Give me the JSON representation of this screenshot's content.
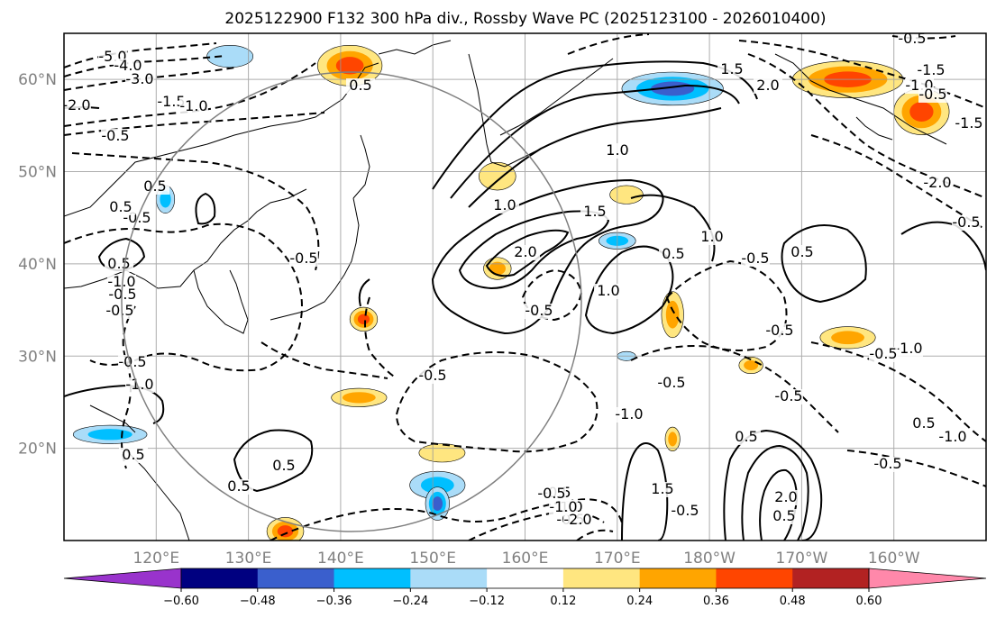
{
  "chart_data": {
    "type": "heatmap",
    "title": "2025122900 F132 300 hPa div., Rossby Wave PC (2025123100 - 2026010400)",
    "projection": "map",
    "lon_range": [
      110,
      210
    ],
    "lat_range": [
      10,
      65
    ],
    "grid": true,
    "xticks": [
      {
        "lon": 120,
        "label": "120°E"
      },
      {
        "lon": 130,
        "label": "130°E"
      },
      {
        "lon": 140,
        "label": "140°E"
      },
      {
        "lon": 150,
        "label": "150°E"
      },
      {
        "lon": 160,
        "label": "160°E"
      },
      {
        "lon": 170,
        "label": "170°E"
      },
      {
        "lon": 180,
        "label": "180°W"
      },
      {
        "lon": 190,
        "label": "170°W"
      },
      {
        "lon": 200,
        "label": "160°W"
      }
    ],
    "yticks": [
      {
        "lat": 20,
        "label": "20°N"
      },
      {
        "lat": 30,
        "label": "30°N"
      },
      {
        "lat": 40,
        "label": "40°N"
      },
      {
        "lat": 50,
        "label": "50°N"
      },
      {
        "lat": 60,
        "label": "60°N"
      }
    ],
    "colorbar": {
      "levels": [
        -0.6,
        -0.48,
        -0.36,
        -0.24,
        -0.12,
        0.12,
        0.24,
        0.36,
        0.48,
        0.6
      ],
      "tick_labels": [
        "−0.60",
        "−0.48",
        "−0.36",
        "−0.24",
        "−0.12",
        "0.12",
        "0.24",
        "0.36",
        "0.48",
        "0.60"
      ],
      "colors": [
        "#9933cc",
        "#000080",
        "#3a5fcd",
        "#00bfff",
        "#aadcf8",
        "#ffffff",
        "#ffe680",
        "#ffa500",
        "#ff4500",
        "#b22222",
        "#ff88aa"
      ]
    },
    "shaded_regions": [
      {
        "lon": 141,
        "lat": 61.5,
        "r_lon": 3.5,
        "r_lat": 2.2,
        "value": 0.4
      },
      {
        "lon": 176,
        "lat": 59,
        "r_lon": 5.5,
        "r_lat": 1.8,
        "value": -0.45
      },
      {
        "lon": 195,
        "lat": 60,
        "r_lon": 6,
        "r_lat": 2,
        "value": 0.42
      },
      {
        "lon": 203,
        "lat": 56.5,
        "r_lon": 3,
        "r_lat": 2.5,
        "value": 0.45
      },
      {
        "lon": 157,
        "lat": 49.5,
        "r_lon": 2,
        "r_lat": 1.5,
        "value": 0.2
      },
      {
        "lon": 157,
        "lat": 39.5,
        "r_lon": 1.5,
        "r_lat": 1.2,
        "value": 0.28
      },
      {
        "lon": 171,
        "lat": 47.5,
        "r_lon": 1.8,
        "r_lat": 1,
        "value": 0.22
      },
      {
        "lon": 170,
        "lat": 42.5,
        "r_lon": 2,
        "r_lat": 0.9,
        "value": -0.25
      },
      {
        "lon": 176,
        "lat": 34.5,
        "r_lon": 1.2,
        "r_lat": 2.5,
        "value": 0.34
      },
      {
        "lon": 142.5,
        "lat": 34,
        "r_lon": 1.5,
        "r_lat": 1.3,
        "value": 0.38
      },
      {
        "lon": 142,
        "lat": 25.5,
        "r_lon": 3,
        "r_lat": 1,
        "value": 0.26
      },
      {
        "lon": 195,
        "lat": 32,
        "r_lon": 3,
        "r_lat": 1.2,
        "value": 0.27
      },
      {
        "lon": 184.5,
        "lat": 29,
        "r_lon": 1.3,
        "r_lat": 0.9,
        "value": 0.26
      },
      {
        "lon": 150.5,
        "lat": 16,
        "r_lon": 3,
        "r_lat": 1.5,
        "value": -0.3
      },
      {
        "lon": 150.5,
        "lat": 14,
        "r_lon": 1.3,
        "r_lat": 1.8,
        "value": -0.38
      },
      {
        "lon": 151,
        "lat": 19.5,
        "r_lon": 2.5,
        "r_lat": 1,
        "value": 0.22
      },
      {
        "lon": 115,
        "lat": 21.5,
        "r_lon": 4,
        "r_lat": 1,
        "value": -0.3
      },
      {
        "lon": 171,
        "lat": 30,
        "r_lon": 1,
        "r_lat": 0.5,
        "value": -0.22
      },
      {
        "lon": 176,
        "lat": 21,
        "r_lon": 0.8,
        "r_lat": 1.3,
        "value": 0.27
      },
      {
        "lon": 134,
        "lat": 11,
        "r_lon": 2,
        "r_lat": 1.5,
        "value": 0.38
      },
      {
        "lon": 121,
        "lat": 47,
        "r_lon": 1,
        "r_lat": 1.5,
        "value": -0.3
      },
      {
        "lon": 128,
        "lat": 62.5,
        "r_lon": 2.5,
        "r_lat": 1.2,
        "value": -0.22
      }
    ],
    "contour_labels": [
      "-5.0",
      "-4.0",
      "-3.0",
      "-1.5",
      "-1.0",
      "-2.0",
      "-0.5",
      "0.5",
      "1.0",
      "1.5",
      "2.0",
      "-0.5",
      "-1.0",
      "-1.5",
      "-2.0",
      "-0.5",
      "0.5",
      "1.0",
      "1.5",
      "2.0",
      "-0.5",
      "0.5",
      "-0.5",
      "1.0",
      "0.5",
      "-0.5",
      "-1.0",
      "0.5",
      "-0.5",
      "-0.5",
      "-0.5",
      "0.5",
      "-1.0",
      "-0.5",
      "-0.5",
      "-1.0",
      "0.5",
      "-0.5",
      "1.0",
      "-0.5",
      "1.0",
      "1.5",
      "2.0",
      "0.5",
      "0.5",
      "-0.5",
      "-0.5",
      "-1.0",
      "-2.0",
      "0.5",
      "-1.0",
      "-0.5",
      "0.5",
      "-0.5",
      "-0.5",
      "-1.0",
      "-1.5",
      "-0.5",
      "0.5",
      "-0.5",
      "-0.5"
    ]
  }
}
